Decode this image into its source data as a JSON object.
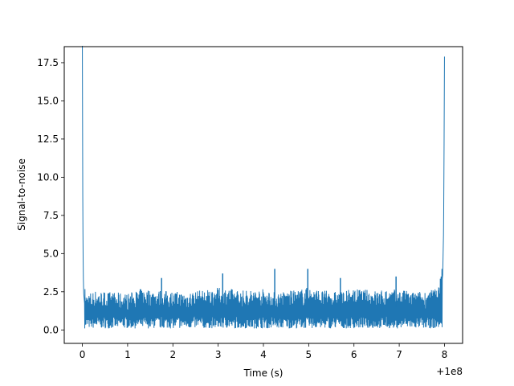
{
  "chart_data": {
    "type": "line",
    "title": "",
    "xlabel": "Time (s)",
    "ylabel": "Signal-to-noise",
    "x_offset_label": "+1e8",
    "xlim": [
      -0.4,
      8.4
    ],
    "ylim": [
      -0.88,
      18.55
    ],
    "x_ticks": [
      0,
      1,
      2,
      3,
      4,
      5,
      6,
      7,
      8
    ],
    "x_tick_labels": [
      "0",
      "1",
      "2",
      "3",
      "4",
      "5",
      "6",
      "7",
      "8"
    ],
    "y_ticks": [
      0.0,
      2.5,
      5.0,
      7.5,
      10.0,
      12.5,
      15.0,
      17.5
    ],
    "y_tick_labels": [
      "0.0",
      "2.5",
      "5.0",
      "7.5",
      "10.0",
      "12.5",
      "15.0",
      "17.5"
    ],
    "grid": false,
    "series": [
      {
        "color": "#1f77b4",
        "x": [
          0.0,
          0.01,
          0.02,
          0.03,
          0.05,
          0.08,
          0.3,
          0.6,
          1.0,
          1.3,
          1.75,
          2.2,
          2.6,
          3.1,
          3.5,
          4.0,
          4.25,
          4.7,
          4.98,
          5.3,
          5.7,
          6.0,
          6.5,
          6.93,
          7.3,
          7.7,
          7.85,
          7.92,
          7.96,
          7.98,
          7.99,
          8.0
        ],
        "y": [
          18.6,
          7.6,
          3.6,
          2.4,
          1.7,
          1.2,
          1.4,
          1.3,
          1.2,
          1.5,
          1.4,
          1.3,
          1.4,
          1.6,
          1.4,
          1.5,
          1.3,
          1.4,
          1.6,
          1.4,
          1.3,
          1.5,
          1.4,
          1.5,
          1.3,
          1.4,
          1.7,
          2.4,
          3.6,
          6.5,
          11.5,
          17.9
        ],
        "band_min": [
          0.1,
          0.1,
          0.1,
          0.1,
          0.1,
          0.1,
          0.1,
          0.1,
          0.1,
          0.1,
          0.1,
          0.1,
          0.1,
          0.1,
          0.1,
          0.1,
          0.1,
          0.1,
          0.1,
          0.1,
          0.1,
          0.1,
          0.1,
          0.1,
          0.1,
          0.1,
          0.1,
          0.1,
          0.1,
          0.1,
          0.1,
          0.1
        ],
        "peaks": [
          {
            "x": 0.0,
            "y": 18.6
          },
          {
            "x": 1.75,
            "y": 3.4
          },
          {
            "x": 3.1,
            "y": 3.7
          },
          {
            "x": 4.25,
            "y": 4.0
          },
          {
            "x": 4.98,
            "y": 4.0
          },
          {
            "x": 5.7,
            "y": 3.4
          },
          {
            "x": 6.93,
            "y": 3.5
          },
          {
            "x": 8.0,
            "y": 17.9
          }
        ]
      }
    ]
  }
}
